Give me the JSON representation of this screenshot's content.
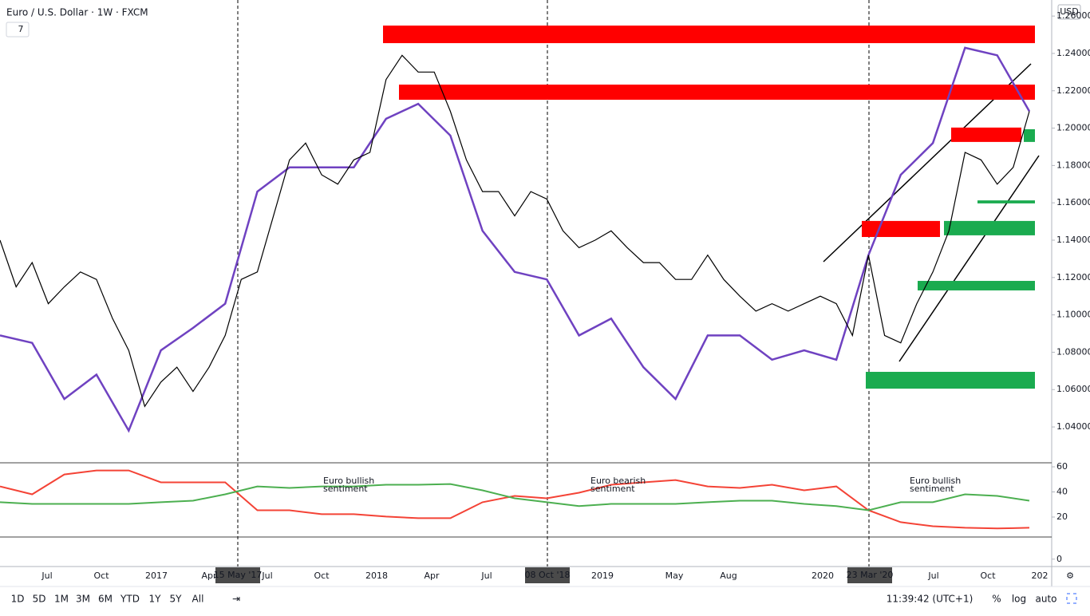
{
  "header": {
    "title": "Euro / U.S. Dollar · 1W · FXCM",
    "indicator_count": "7",
    "currency": "USD"
  },
  "chart_data": [
    {
      "type": "line",
      "name": "price",
      "values": [
        1.14,
        1.115,
        1.128,
        1.106,
        1.115,
        1.123,
        1.119,
        1.098,
        1.081,
        1.051,
        1.064,
        1.072,
        1.059,
        1.072,
        1.089,
        1.119,
        1.123,
        1.153,
        1.183,
        1.192,
        1.175,
        1.17,
        1.183,
        1.187,
        1.226,
        1.239,
        1.23,
        1.23,
        1.209,
        1.183,
        1.166,
        1.166,
        1.153,
        1.166,
        1.162,
        1.145,
        1.136,
        1.14,
        1.145,
        1.136,
        1.128,
        1.128,
        1.119,
        1.119,
        1.132,
        1.119,
        1.11,
        1.102,
        1.106,
        1.102,
        1.106,
        1.11,
        1.106,
        1.089,
        1.132,
        1.089,
        1.085,
        1.106,
        1.123,
        1.145,
        1.187,
        1.183,
        1.17,
        1.179,
        1.209
      ],
      "color": "#000000",
      "indicator": {
        "values": [
          1.089,
          1.085,
          1.055,
          1.068,
          1.038,
          1.081,
          1.093,
          1.106,
          1.166,
          1.179,
          1.179,
          1.179,
          1.205,
          1.213,
          1.196,
          1.145,
          1.123,
          1.119,
          1.089,
          1.098,
          1.072,
          1.055,
          1.089,
          1.089,
          1.076,
          1.081,
          1.076,
          1.132,
          1.175,
          1.192,
          1.243,
          1.239,
          1.209
        ],
        "color": "#6f42c1"
      },
      "resistance_zones": [
        [
          1.2549,
          1.2455
        ],
        [
          1.2233,
          1.2152
        ],
        [
          1.2003,
          1.1926
        ],
        [
          1.1503,
          1.1417
        ]
      ],
      "resistance_color": "#ff0000",
      "support_zones": [
        [
          1.1994,
          1.1926
        ],
        [
          1.1613,
          1.1597
        ],
        [
          1.1503,
          1.1426
        ],
        [
          1.1182,
          1.1131
        ],
        [
          1.0695,
          1.0605
        ]
      ],
      "support_color": "#1aab4f",
      "ylim": [
        1.0208,
        1.2686
      ],
      "yticks": [
        {
          "value": 1.26,
          "label": "1.26000"
        },
        {
          "value": 1.24,
          "label": "1.24000"
        },
        {
          "value": 1.22,
          "label": "1.22000"
        },
        {
          "value": 1.2,
          "label": "1.20000"
        },
        {
          "value": 1.18,
          "label": "1.18000"
        },
        {
          "value": 1.16,
          "label": "1.16000"
        },
        {
          "value": 1.14,
          "label": "1.14000"
        },
        {
          "value": 1.12,
          "label": "1.12000"
        },
        {
          "value": 1.1,
          "label": "1.10000"
        },
        {
          "value": 1.08,
          "label": "1.08000"
        },
        {
          "value": 1.06,
          "label": "1.06000"
        },
        {
          "value": 1.04,
          "label": "1.04000"
        }
      ],
      "grid": false
    },
    {
      "type": "line",
      "name": "sentiment",
      "series": [
        {
          "color": "#f44336",
          "values": [
            44.4,
            38.1,
            53.9,
            57.1,
            57.1,
            47.6,
            47.6,
            47.6,
            25.4,
            25.4,
            22.3,
            22.3,
            20.4,
            19.1,
            19.1,
            31.8,
            36.8,
            34.9,
            39.4,
            45.7,
            47.6,
            49.5,
            44.4,
            43.2,
            45.7,
            41.3,
            44.4,
            25.4,
            15.9,
            12.7,
            11.5,
            10.9,
            11.5
          ]
        },
        {
          "color": "#4caf50",
          "values": [
            31.8,
            30.5,
            30.5,
            30.5,
            30.5,
            31.8,
            33.0,
            38.1,
            44.4,
            43.2,
            44.4,
            44.4,
            45.7,
            45.7,
            46.3,
            41.3,
            34.9,
            31.8,
            28.7,
            30.5,
            30.5,
            30.5,
            31.8,
            33.0,
            33.0,
            30.5,
            28.7,
            25.4,
            31.8,
            31.8,
            38.1,
            36.8,
            33.0
          ]
        }
      ],
      "annotations": [
        "Euro bullish\nsentiment",
        "Euro bearish\nsentiment",
        "Euro bullish\nsentiment"
      ],
      "ylim": [
        4.1,
        63.2
      ],
      "yticks": [
        60,
        40,
        20
      ]
    },
    {
      "type": "empty",
      "ylim": [
        -6,
        18
      ],
      "yticks": [
        0
      ]
    }
  ],
  "time_axis": [
    "Jul",
    "Oct",
    "2017",
    "Apr",
    "Jul",
    "Oct",
    "2018",
    "Apr",
    "Jul",
    "2019",
    "May",
    "Aug",
    "2020",
    "Jul",
    "Oct",
    "202"
  ],
  "marked_dates": [
    "15 May '17",
    "08 Oct '18",
    "23 Mar '20"
  ],
  "toolbar": {
    "ranges": [
      "1D",
      "5D",
      "1M",
      "3M",
      "6M",
      "YTD",
      "1Y",
      "5Y",
      "All"
    ],
    "clock": "11:39:42 (UTC+1)",
    "percent": "%",
    "log": "log",
    "auto": "auto"
  }
}
